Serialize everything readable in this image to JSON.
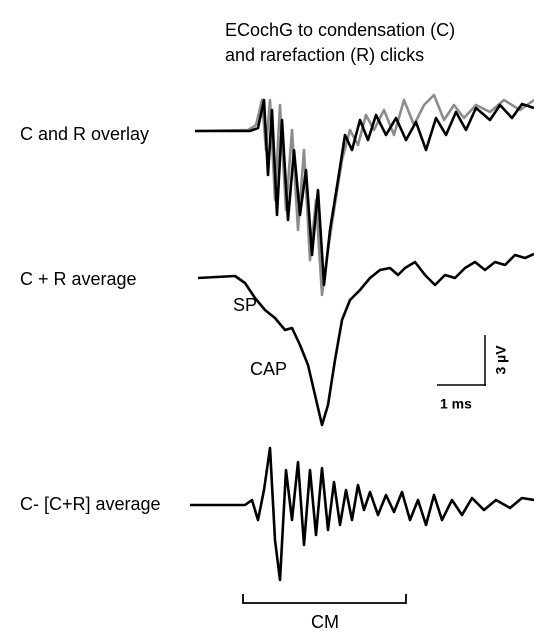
{
  "title": [
    "ECochG to condensation (C)",
    "and rarefaction (R) clicks"
  ],
  "traces": [
    {
      "label": "C and R overlay"
    },
    {
      "label": "C + R average"
    },
    {
      "label": "C- [C+R] average"
    }
  ],
  "annotations": {
    "sp": "SP",
    "cap": "CAP",
    "cm": "CM"
  },
  "scale_bar": {
    "vertical": "3 µV",
    "horizontal": "1 ms"
  }
}
